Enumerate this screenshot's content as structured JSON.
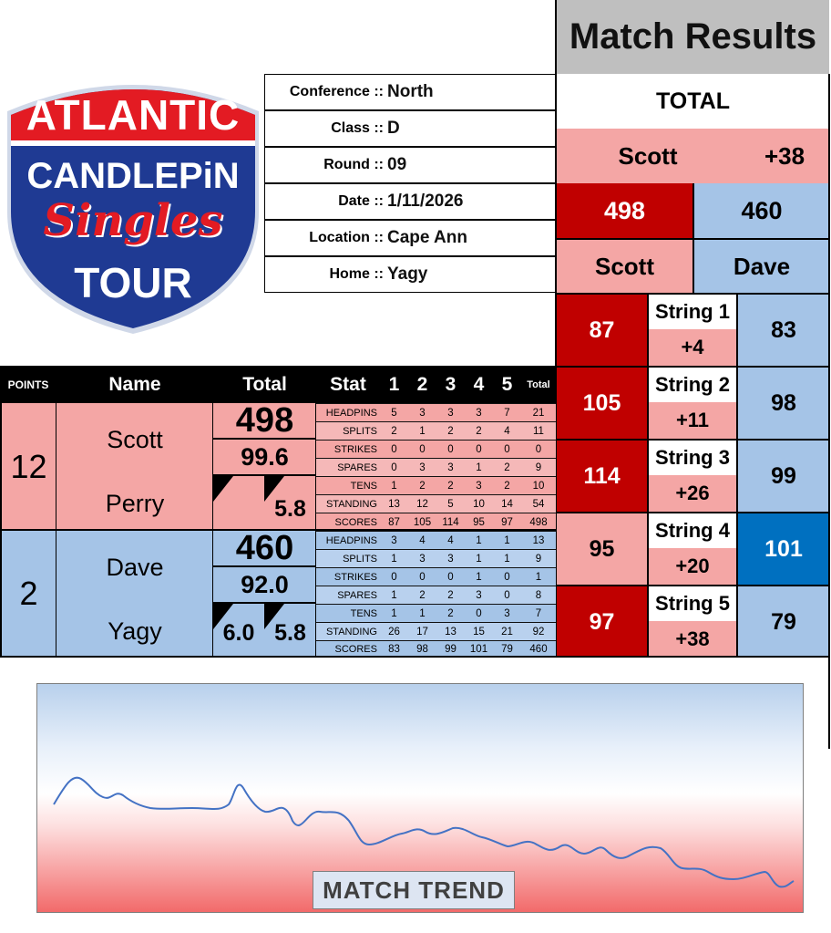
{
  "logo": {
    "line1": "ATLANTIC",
    "line2": "CANDLEPiN",
    "line3": "Singles",
    "line4": "TOUR"
  },
  "info": [
    {
      "label": "Conference ::",
      "value": "North"
    },
    {
      "label": "Class ::",
      "value": "D"
    },
    {
      "label": "Round ::",
      "value": "09"
    },
    {
      "label": "Date ::",
      "value": "1/11/2026"
    },
    {
      "label": "Location ::",
      "value": "Cape Ann"
    },
    {
      "label": "Home ::",
      "value": "Yagy"
    }
  ],
  "results": {
    "title": "Match Results",
    "total_label": "TOTAL",
    "leader": "Scott",
    "margin": "+38",
    "score_a": "498",
    "score_b": "460",
    "player_a": "Scott",
    "player_b": "Dave",
    "strings": [
      {
        "a": "87",
        "label": "String 1",
        "diff": "+4",
        "b": "83"
      },
      {
        "a": "105",
        "label": "String 2",
        "diff": "+11",
        "b": "98"
      },
      {
        "a": "114",
        "label": "String 3",
        "diff": "+26",
        "b": "99"
      },
      {
        "a": "95",
        "label": "String 4",
        "diff": "+20",
        "b": "101"
      },
      {
        "a": "97",
        "label": "String 5",
        "diff": "+38",
        "b": "79"
      }
    ]
  },
  "table": {
    "headers": {
      "points": "POINTS",
      "name": "Name",
      "total": "Total",
      "stat": "Stat",
      "cols": [
        "1",
        "2",
        "3",
        "4",
        "5"
      ],
      "total_col": "Total"
    },
    "team_a": {
      "points": "12",
      "first": "Scott",
      "last": "Perry",
      "total": "498",
      "avg": "99.6",
      "sub_left": "",
      "sub_right": "5.8",
      "stats": [
        {
          "label": "HEADPINS",
          "vals": [
            "5",
            "3",
            "3",
            "3",
            "7"
          ],
          "total": "21"
        },
        {
          "label": "SPLITS",
          "vals": [
            "2",
            "1",
            "2",
            "2",
            "4"
          ],
          "total": "11"
        },
        {
          "label": "STRIKES",
          "vals": [
            "0",
            "0",
            "0",
            "0",
            "0"
          ],
          "total": "0"
        },
        {
          "label": "SPARES",
          "vals": [
            "0",
            "3",
            "3",
            "1",
            "2"
          ],
          "total": "9"
        },
        {
          "label": "TENS",
          "vals": [
            "1",
            "2",
            "2",
            "3",
            "2"
          ],
          "total": "10"
        },
        {
          "label": "STANDING",
          "vals": [
            "13",
            "12",
            "5",
            "10",
            "14"
          ],
          "total": "54"
        },
        {
          "label": "SCORES",
          "vals": [
            "87",
            "105",
            "114",
            "95",
            "97"
          ],
          "total": "498"
        }
      ]
    },
    "team_b": {
      "points": "2",
      "first": "Dave",
      "last": "Yagy",
      "total": "460",
      "avg": "92.0",
      "sub_left": "6.0",
      "sub_right": "5.8",
      "stats": [
        {
          "label": "HEADPINS",
          "vals": [
            "3",
            "4",
            "4",
            "1",
            "1"
          ],
          "total": "13"
        },
        {
          "label": "SPLITS",
          "vals": [
            "1",
            "3",
            "3",
            "1",
            "1"
          ],
          "total": "9"
        },
        {
          "label": "STRIKES",
          "vals": [
            "0",
            "0",
            "0",
            "1",
            "0"
          ],
          "total": "1"
        },
        {
          "label": "SPARES",
          "vals": [
            "1",
            "2",
            "2",
            "3",
            "0"
          ],
          "total": "8"
        },
        {
          "label": "TENS",
          "vals": [
            "1",
            "1",
            "2",
            "0",
            "3"
          ],
          "total": "7"
        },
        {
          "label": "STANDING",
          "vals": [
            "26",
            "17",
            "13",
            "15",
            "21"
          ],
          "total": "92"
        },
        {
          "label": "SCORES",
          "vals": [
            "83",
            "98",
            "99",
            "101",
            "79"
          ],
          "total": "460"
        }
      ]
    }
  },
  "trend": {
    "label": "MATCH TREND",
    "line_color": "#4472c4"
  },
  "colors": {
    "dark_red": "#c00000",
    "light_red": "#f4a6a5",
    "light_blue": "#a5c4e7",
    "mid_blue": "#0070c0",
    "header_gray": "#bfbfbf"
  }
}
